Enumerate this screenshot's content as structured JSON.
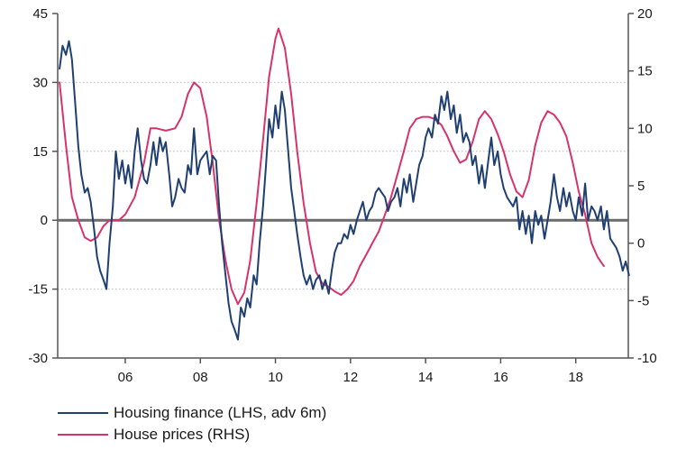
{
  "chart_data": {
    "type": "line",
    "title": "",
    "x_ticks": [
      2006,
      2008,
      2010,
      2012,
      2014,
      2016,
      2018
    ],
    "x_tick_labels": [
      "06",
      "08",
      "10",
      "12",
      "14",
      "16",
      "18"
    ],
    "xlim": [
      2004.2,
      2019.4
    ],
    "y_left": {
      "lim": [
        -30,
        45
      ],
      "ticks": [
        -30,
        -15,
        0,
        15,
        30,
        45
      ],
      "tick_labels": [
        "-30",
        "-15",
        "0",
        "15",
        "30",
        "45"
      ]
    },
    "y_right": {
      "lim": [
        -10,
        20
      ],
      "ticks": [
        -10,
        -5,
        0,
        5,
        10,
        15,
        20
      ],
      "tick_labels": [
        "-10",
        "-5",
        "0",
        "5",
        "10",
        "15",
        "20"
      ]
    },
    "grid": "horizontal dotted",
    "zero_line": "left axis at 0",
    "legend_position": "bottom-left",
    "series": [
      {
        "name": "Housing finance (LHS, adv 6m)",
        "axis": "left",
        "color": "#1f3f73",
        "points": [
          [
            2004.25,
            33
          ],
          [
            2004.33,
            38
          ],
          [
            2004.42,
            36
          ],
          [
            2004.5,
            39
          ],
          [
            2004.58,
            35
          ],
          [
            2004.67,
            25
          ],
          [
            2004.75,
            16
          ],
          [
            2004.83,
            10
          ],
          [
            2004.92,
            6
          ],
          [
            2005.0,
            7
          ],
          [
            2005.08,
            4
          ],
          [
            2005.17,
            -2
          ],
          [
            2005.25,
            -8
          ],
          [
            2005.33,
            -11
          ],
          [
            2005.42,
            -13
          ],
          [
            2005.5,
            -15
          ],
          [
            2005.58,
            -5
          ],
          [
            2005.67,
            3
          ],
          [
            2005.75,
            15
          ],
          [
            2005.83,
            9
          ],
          [
            2005.92,
            13
          ],
          [
            2006.0,
            8
          ],
          [
            2006.08,
            12
          ],
          [
            2006.17,
            7
          ],
          [
            2006.25,
            15
          ],
          [
            2006.33,
            20
          ],
          [
            2006.42,
            13
          ],
          [
            2006.5,
            9
          ],
          [
            2006.58,
            8
          ],
          [
            2006.67,
            12
          ],
          [
            2006.75,
            17
          ],
          [
            2006.83,
            12
          ],
          [
            2006.92,
            18
          ],
          [
            2007.0,
            15
          ],
          [
            2007.08,
            17
          ],
          [
            2007.17,
            10
          ],
          [
            2007.25,
            3
          ],
          [
            2007.33,
            5
          ],
          [
            2007.42,
            9
          ],
          [
            2007.5,
            7
          ],
          [
            2007.58,
            6
          ],
          [
            2007.67,
            12
          ],
          [
            2007.75,
            10
          ],
          [
            2007.83,
            20
          ],
          [
            2007.92,
            10
          ],
          [
            2008.0,
            13
          ],
          [
            2008.08,
            14
          ],
          [
            2008.17,
            15
          ],
          [
            2008.25,
            10
          ],
          [
            2008.33,
            14
          ],
          [
            2008.42,
            13
          ],
          [
            2008.5,
            3
          ],
          [
            2008.58,
            -5
          ],
          [
            2008.67,
            -12
          ],
          [
            2008.75,
            -18
          ],
          [
            2008.83,
            -22
          ],
          [
            2008.92,
            -24
          ],
          [
            2009.0,
            -26
          ],
          [
            2009.08,
            -19
          ],
          [
            2009.17,
            -21
          ],
          [
            2009.25,
            -17
          ],
          [
            2009.33,
            -19
          ],
          [
            2009.42,
            -12
          ],
          [
            2009.5,
            -14
          ],
          [
            2009.58,
            -5
          ],
          [
            2009.67,
            3
          ],
          [
            2009.75,
            12
          ],
          [
            2009.83,
            22
          ],
          [
            2009.92,
            18
          ],
          [
            2010.0,
            25
          ],
          [
            2010.08,
            20
          ],
          [
            2010.17,
            28
          ],
          [
            2010.25,
            24
          ],
          [
            2010.33,
            16
          ],
          [
            2010.42,
            7
          ],
          [
            2010.5,
            2
          ],
          [
            2010.58,
            -3
          ],
          [
            2010.67,
            -8
          ],
          [
            2010.75,
            -12
          ],
          [
            2010.83,
            -14
          ],
          [
            2010.92,
            -12
          ],
          [
            2011.0,
            -15
          ],
          [
            2011.08,
            -13
          ],
          [
            2011.17,
            -12
          ],
          [
            2011.25,
            -15
          ],
          [
            2011.33,
            -13
          ],
          [
            2011.42,
            -16
          ],
          [
            2011.5,
            -11
          ],
          [
            2011.58,
            -7
          ],
          [
            2011.67,
            -5
          ],
          [
            2011.75,
            -5
          ],
          [
            2011.83,
            -3
          ],
          [
            2011.92,
            -4
          ],
          [
            2012.0,
            -1
          ],
          [
            2012.08,
            -3
          ],
          [
            2012.17,
            0
          ],
          [
            2012.25,
            2
          ],
          [
            2012.33,
            4
          ],
          [
            2012.42,
            0
          ],
          [
            2012.5,
            2
          ],
          [
            2012.58,
            3
          ],
          [
            2012.67,
            6
          ],
          [
            2012.75,
            7
          ],
          [
            2012.83,
            6
          ],
          [
            2012.92,
            5
          ],
          [
            2013.0,
            2
          ],
          [
            2013.08,
            4
          ],
          [
            2013.17,
            5
          ],
          [
            2013.25,
            7
          ],
          [
            2013.33,
            3
          ],
          [
            2013.42,
            9
          ],
          [
            2013.5,
            6
          ],
          [
            2013.58,
            10
          ],
          [
            2013.67,
            4
          ],
          [
            2013.75,
            8
          ],
          [
            2013.83,
            12
          ],
          [
            2013.92,
            14
          ],
          [
            2014.0,
            18
          ],
          [
            2014.08,
            20
          ],
          [
            2014.17,
            18
          ],
          [
            2014.25,
            23
          ],
          [
            2014.33,
            21
          ],
          [
            2014.42,
            27
          ],
          [
            2014.5,
            24
          ],
          [
            2014.58,
            28
          ],
          [
            2014.67,
            22
          ],
          [
            2014.75,
            25
          ],
          [
            2014.83,
            19
          ],
          [
            2014.92,
            23
          ],
          [
            2015.0,
            17
          ],
          [
            2015.08,
            19
          ],
          [
            2015.17,
            17
          ],
          [
            2015.25,
            12
          ],
          [
            2015.33,
            14
          ],
          [
            2015.42,
            8
          ],
          [
            2015.5,
            12
          ],
          [
            2015.58,
            7
          ],
          [
            2015.67,
            13
          ],
          [
            2015.75,
            18
          ],
          [
            2015.83,
            12
          ],
          [
            2015.92,
            15
          ],
          [
            2016.0,
            10
          ],
          [
            2016.08,
            7
          ],
          [
            2016.17,
            5
          ],
          [
            2016.25,
            4
          ],
          [
            2016.33,
            3
          ],
          [
            2016.42,
            5
          ],
          [
            2016.5,
            -2
          ],
          [
            2016.58,
            2
          ],
          [
            2016.67,
            -3
          ],
          [
            2016.75,
            1
          ],
          [
            2016.83,
            -5
          ],
          [
            2016.92,
            2
          ],
          [
            2017.0,
            -1
          ],
          [
            2017.08,
            1
          ],
          [
            2017.17,
            -4
          ],
          [
            2017.25,
            0
          ],
          [
            2017.33,
            4
          ],
          [
            2017.42,
            10
          ],
          [
            2017.5,
            5
          ],
          [
            2017.58,
            2
          ],
          [
            2017.67,
            7
          ],
          [
            2017.75,
            3
          ],
          [
            2017.83,
            6
          ],
          [
            2017.92,
            2
          ],
          [
            2018.0,
            0
          ],
          [
            2018.08,
            5
          ],
          [
            2018.17,
            1
          ],
          [
            2018.25,
            8
          ],
          [
            2018.33,
            0
          ],
          [
            2018.42,
            3
          ],
          [
            2018.5,
            2
          ],
          [
            2018.58,
            0
          ],
          [
            2018.67,
            3
          ],
          [
            2018.75,
            -2
          ],
          [
            2018.83,
            2
          ],
          [
            2018.92,
            -4
          ],
          [
            2019.0,
            -5
          ],
          [
            2019.08,
            -6
          ],
          [
            2019.17,
            -8
          ],
          [
            2019.25,
            -11
          ],
          [
            2019.33,
            -9
          ],
          [
            2019.42,
            -12
          ]
        ]
      },
      {
        "name": "House prices (RHS)",
        "axis": "right",
        "color": "#d6336c",
        "points": [
          [
            2004.25,
            14
          ],
          [
            2004.42,
            8.5
          ],
          [
            2004.58,
            4
          ],
          [
            2004.75,
            2
          ],
          [
            2004.92,
            0.5
          ],
          [
            2005.08,
            0.2
          ],
          [
            2005.25,
            0.5
          ],
          [
            2005.42,
            1.5
          ],
          [
            2005.58,
            2
          ],
          [
            2005.83,
            2
          ],
          [
            2006.0,
            2.5
          ],
          [
            2006.25,
            4
          ],
          [
            2006.5,
            7
          ],
          [
            2006.67,
            10
          ],
          [
            2006.83,
            10
          ],
          [
            2007.08,
            9.8
          ],
          [
            2007.33,
            10
          ],
          [
            2007.5,
            11
          ],
          [
            2007.67,
            13
          ],
          [
            2007.83,
            14
          ],
          [
            2008.0,
            13.5
          ],
          [
            2008.17,
            11
          ],
          [
            2008.33,
            7
          ],
          [
            2008.5,
            2
          ],
          [
            2008.67,
            -1.5
          ],
          [
            2008.83,
            -4
          ],
          [
            2009.0,
            -5.3
          ],
          [
            2009.17,
            -4.3
          ],
          [
            2009.33,
            -1.5
          ],
          [
            2009.5,
            3.5
          ],
          [
            2009.67,
            9
          ],
          [
            2009.83,
            14.5
          ],
          [
            2010.0,
            17.8
          ],
          [
            2010.08,
            18.7
          ],
          [
            2010.25,
            17
          ],
          [
            2010.42,
            13
          ],
          [
            2010.58,
            8
          ],
          [
            2010.75,
            3.5
          ],
          [
            2010.92,
            0
          ],
          [
            2011.08,
            -2.5
          ],
          [
            2011.25,
            -3.5
          ],
          [
            2011.42,
            -3.8
          ],
          [
            2011.58,
            -4.2
          ],
          [
            2011.75,
            -4.5
          ],
          [
            2011.92,
            -4
          ],
          [
            2012.08,
            -3.3
          ],
          [
            2012.25,
            -2
          ],
          [
            2012.42,
            -1
          ],
          [
            2012.58,
            0
          ],
          [
            2012.75,
            1
          ],
          [
            2012.92,
            2.5
          ],
          [
            2013.08,
            4
          ],
          [
            2013.25,
            6
          ],
          [
            2013.42,
            8
          ],
          [
            2013.58,
            10
          ],
          [
            2013.75,
            10.8
          ],
          [
            2013.92,
            11
          ],
          [
            2014.08,
            11
          ],
          [
            2014.25,
            10.8
          ],
          [
            2014.42,
            10.3
          ],
          [
            2014.58,
            9.3
          ],
          [
            2014.75,
            8
          ],
          [
            2014.92,
            7
          ],
          [
            2015.08,
            7.3
          ],
          [
            2015.25,
            8.8
          ],
          [
            2015.42,
            10.8
          ],
          [
            2015.58,
            11.5
          ],
          [
            2015.75,
            10.8
          ],
          [
            2015.92,
            9.5
          ],
          [
            2016.08,
            8
          ],
          [
            2016.25,
            6
          ],
          [
            2016.42,
            4.5
          ],
          [
            2016.58,
            4
          ],
          [
            2016.75,
            5.5
          ],
          [
            2016.92,
            8.5
          ],
          [
            2017.08,
            10.5
          ],
          [
            2017.25,
            11.5
          ],
          [
            2017.42,
            11.2
          ],
          [
            2017.58,
            10.5
          ],
          [
            2017.75,
            9.3
          ],
          [
            2017.92,
            7
          ],
          [
            2018.08,
            4.5
          ],
          [
            2018.25,
            2.5
          ],
          [
            2018.42,
            0
          ],
          [
            2018.58,
            -1.2
          ],
          [
            2018.75,
            -2
          ]
        ]
      }
    ]
  }
}
